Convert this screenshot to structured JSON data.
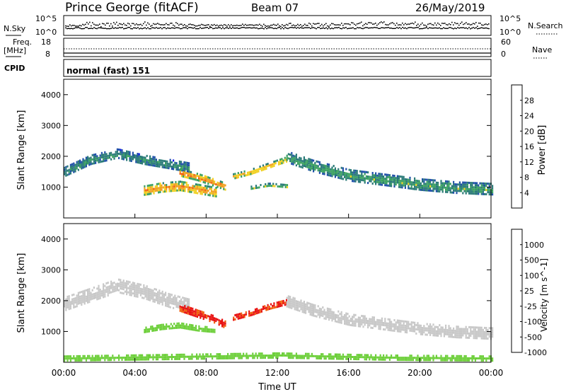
{
  "header": {
    "station": "Prince George (fitACF)",
    "beam": "Beam 07",
    "date": "26/May/2019"
  },
  "top_panels": {
    "nsky_label": "N.Sky",
    "nsearch_label": "N.Search",
    "noise_ticks": [
      "10^5",
      "10^0"
    ],
    "freq_label_line1": "Freq.",
    "freq_label_line2": "[MHz]",
    "freq_ticks": [
      "18",
      "8"
    ],
    "nave_label": "Nave",
    "nave_ticks": [
      "60",
      "0"
    ],
    "cpid_label": "CPID",
    "cpid_value": "normal (fast) 151"
  },
  "power_colorbar": {
    "title": "Power [dB]",
    "ticks": [
      "4",
      "8",
      "12",
      "16",
      "20",
      "24",
      "28"
    ],
    "colors": [
      "#0a17e6",
      "#1f4fa8",
      "#2a7a78",
      "#3aa060",
      "#f0d020",
      "#f0a020",
      "#f06010",
      "#e81010"
    ]
  },
  "velocity_colorbar": {
    "title": "Velocity [m s^-1]",
    "ticks": [
      "1000",
      "500",
      "100",
      "25",
      "-25",
      "-100",
      "-500",
      "-1000"
    ],
    "colors": [
      "#1a2fd0",
      "#2870a8",
      "#2e8b57",
      "#6dcf3a",
      "#c8c8c8",
      "#f0a020",
      "#f06010",
      "#e81010"
    ]
  },
  "x_axis": {
    "ticks": [
      "00:00",
      "04:00",
      "08:00",
      "12:00",
      "16:00",
      "20:00",
      "00:00"
    ],
    "label": "Time UT"
  },
  "chart_data": [
    {
      "type": "heatmap",
      "panel": "power",
      "ylabel": "Slant Range [km]",
      "yticks": [
        1000,
        2000,
        3000,
        4000
      ],
      "ylim": [
        0,
        4500
      ],
      "xlim": [
        0,
        24
      ],
      "xunit": "hours UT",
      "clim": [
        0,
        30
      ],
      "bands": [
        {
          "x": [
            0.0,
            1.5,
            3.0,
            4.5,
            6.0,
            7.0
          ],
          "y": [
            1500,
            1900,
            2100,
            1900,
            1750,
            1650
          ],
          "w": 320,
          "v": 12
        },
        {
          "x": [
            6.5,
            7.5,
            8.5,
            9.0
          ],
          "y": [
            1500,
            1350,
            1150,
            1050
          ],
          "w": 220,
          "v": 26
        },
        {
          "x": [
            4.5,
            5.5,
            6.5,
            7.5,
            8.5
          ],
          "y": [
            900,
            1000,
            1050,
            950,
            850
          ],
          "w": 320,
          "v": 24
        },
        {
          "x": [
            9.5,
            10.5,
            11.5,
            12.5
          ],
          "y": [
            1350,
            1500,
            1700,
            1900
          ],
          "w": 200,
          "v": 22
        },
        {
          "x": [
            12.5,
            14.0,
            16.0,
            18.0,
            20.0,
            22.0,
            24.0
          ],
          "y": [
            2000,
            1700,
            1400,
            1250,
            1100,
            1000,
            950
          ],
          "w": 380,
          "v": 14
        },
        {
          "x": [
            10.5,
            11.5,
            12.5
          ],
          "y": [
            1000,
            1100,
            1050
          ],
          "w": 100,
          "v": 18
        }
      ]
    },
    {
      "type": "heatmap",
      "panel": "velocity",
      "ylabel": "Slant Range [km]",
      "yticks": [
        1000,
        2000,
        3000,
        4000
      ],
      "ylim": [
        0,
        4500
      ],
      "xlim": [
        0,
        24
      ],
      "xunit": "hours UT",
      "clim": [
        -1000,
        1000
      ],
      "bands": [
        {
          "x": [
            0.0,
            1.5,
            3.0,
            4.5,
            6.0,
            7.0
          ],
          "y": [
            1900,
            2200,
            2500,
            2300,
            2000,
            1850
          ],
          "w": 450,
          "v": 0
        },
        {
          "x": [
            6.5,
            7.5,
            8.5,
            9.0
          ],
          "y": [
            1800,
            1600,
            1400,
            1250
          ],
          "w": 220,
          "v": -600
        },
        {
          "x": [
            4.5,
            5.5,
            6.5,
            7.5,
            8.5
          ],
          "y": [
            1050,
            1150,
            1200,
            1100,
            1050
          ],
          "w": 200,
          "v": 60
        },
        {
          "x": [
            9.5,
            10.5,
            11.5,
            12.5
          ],
          "y": [
            1450,
            1600,
            1800,
            1950
          ],
          "w": 200,
          "v": -600
        },
        {
          "x": [
            12.5,
            14.0,
            16.0,
            18.0,
            20.0,
            22.0,
            24.0
          ],
          "y": [
            2000,
            1700,
            1400,
            1250,
            1100,
            1000,
            950
          ],
          "w": 380,
          "v": 0
        },
        {
          "x": [
            0.0,
            6.0,
            12.0,
            18.0,
            24.0
          ],
          "y": [
            150,
            200,
            250,
            180,
            150
          ],
          "w": 150,
          "v": 60
        }
      ]
    }
  ]
}
